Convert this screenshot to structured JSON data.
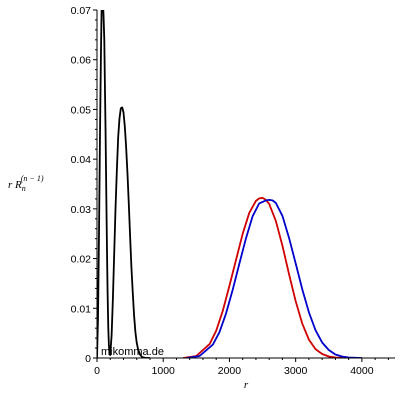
{
  "chart_data": {
    "type": "line",
    "xlabel": "r",
    "ylabel": {
      "main": "r R",
      "sub": "n",
      "sup": "(n − 1)"
    },
    "xlim": [
      0,
      4500
    ],
    "ylim": [
      0,
      0.07
    ],
    "x_ticks": [
      0,
      1000,
      2000,
      3000,
      4000
    ],
    "x_tick_labels": [
      "0",
      "1000",
      "2000",
      "3000",
      "4000"
    ],
    "y_ticks": [
      0,
      0.01,
      0.02,
      0.03,
      0.04,
      0.05,
      0.06,
      0.07
    ],
    "y_tick_labels": [
      "0",
      "0.01",
      "0.02",
      "0.03",
      "0.04",
      "0.05",
      "0.06",
      "0.07"
    ],
    "grid": false,
    "series": [
      {
        "color": "#000000",
        "x": [
          0,
          15,
          30,
          45,
          60,
          70,
          80,
          88,
          95,
          100,
          110,
          120,
          130,
          140,
          150,
          160,
          170,
          180,
          190,
          200,
          220,
          240,
          260,
          280,
          300,
          320,
          340,
          360,
          380,
          400,
          420,
          440,
          460,
          480,
          500,
          520,
          540,
          560,
          580,
          600,
          620,
          650,
          680,
          720,
          800
        ],
        "y": [
          0,
          0.008,
          0.025,
          0.045,
          0.062,
          0.07,
          0.07,
          0.07,
          0.07,
          0.0685,
          0.064,
          0.055,
          0.045,
          0.033,
          0.023,
          0.013,
          0.006,
          0.0025,
          0.0008,
          0.0006,
          0.0045,
          0.012,
          0.021,
          0.03,
          0.038,
          0.0445,
          0.0482,
          0.0502,
          0.0504,
          0.0494,
          0.0466,
          0.0425,
          0.037,
          0.031,
          0.0245,
          0.0183,
          0.013,
          0.0085,
          0.0052,
          0.0031,
          0.0017,
          0.0007,
          0.0002,
          5e-05,
          0
        ]
      },
      {
        "color": "#d00000",
        "x": [
          1300,
          1500,
          1700,
          1800,
          1900,
          2000,
          2100,
          2200,
          2300,
          2400,
          2450,
          2500,
          2550,
          2600,
          2700,
          2800,
          2900,
          3000,
          3100,
          3200,
          3300,
          3400,
          3500,
          3600,
          3700,
          3900
        ],
        "y": [
          0,
          0.0004,
          0.0028,
          0.0055,
          0.0095,
          0.0145,
          0.0198,
          0.025,
          0.0292,
          0.0316,
          0.0321,
          0.0322,
          0.0318,
          0.031,
          0.0276,
          0.0226,
          0.0169,
          0.0114,
          0.0069,
          0.0037,
          0.0018,
          0.0008,
          0.0003,
          0.0001,
          3e-05,
          0
        ]
      },
      {
        "color": "#0000cc",
        "x": [
          1350,
          1550,
          1750,
          1850,
          1950,
          2050,
          2150,
          2250,
          2350,
          2450,
          2550,
          2600,
          2650,
          2700,
          2800,
          2900,
          3000,
          3100,
          3200,
          3300,
          3400,
          3500,
          3600,
          3700,
          3800,
          4000
        ],
        "y": [
          0,
          0.0004,
          0.0027,
          0.0052,
          0.009,
          0.0138,
          0.019,
          0.0241,
          0.0285,
          0.0311,
          0.0317,
          0.0318,
          0.0317,
          0.0312,
          0.0286,
          0.0242,
          0.019,
          0.0138,
          0.0092,
          0.0056,
          0.0031,
          0.0016,
          0.0007,
          0.0003,
          0.0001,
          0
        ]
      }
    ]
  },
  "watermark": "mikomma.de"
}
